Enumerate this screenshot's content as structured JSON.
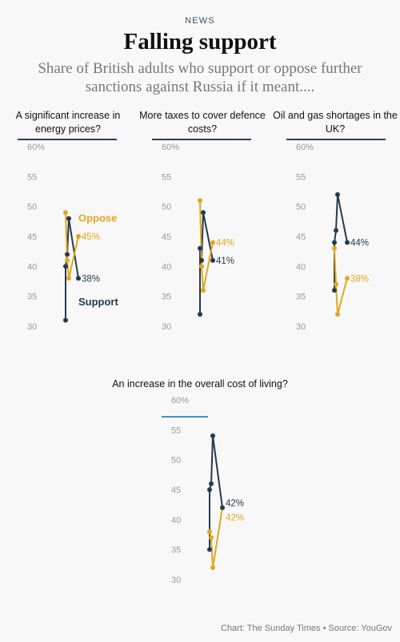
{
  "header": {
    "kicker": "NEWS",
    "title": "Falling support",
    "subtitle": "Share of British adults who support or oppose further sanctions against Russia if it meant...."
  },
  "footer": {
    "credit": "Chart: The Sunday Times • Source: YouGov"
  },
  "colors": {
    "support": "#263a4e",
    "oppose": "#e0a820",
    "tick": "#999999",
    "rule": "#2b4057"
  },
  "chart_data": [
    {
      "type": "line",
      "title": "A significant increase in energy prices?",
      "ylim": [
        30,
        60
      ],
      "yticks": [
        "60%",
        "55",
        "50",
        "45",
        "40",
        "35",
        "30"
      ],
      "series": [
        {
          "name": "Support",
          "values": [
            31,
            40,
            42,
            48,
            38
          ],
          "end_label": "38%"
        },
        {
          "name": "Oppose",
          "values": [
            49,
            41,
            38,
            45
          ],
          "end_label": "45%"
        }
      ]
    },
    {
      "type": "line",
      "title": "More taxes to cover defence costs?",
      "ylim": [
        30,
        60
      ],
      "yticks": [
        "60%",
        "55",
        "50",
        "45",
        "40",
        "35",
        "30"
      ],
      "series": [
        {
          "name": "",
          "values": [
            32,
            43,
            41,
            49,
            41
          ],
          "end_label": "41%"
        },
        {
          "name": "",
          "values": [
            51,
            40,
            36,
            44
          ],
          "end_label": "44%"
        }
      ]
    },
    {
      "type": "line",
      "title": "Oil and gas shortages in the UK?",
      "ylim": [
        30,
        60
      ],
      "yticks": [
        "60%",
        "55",
        "50",
        "45",
        "40",
        "35",
        "30"
      ],
      "series": [
        {
          "name": "",
          "values": [
            36,
            44,
            46,
            52,
            44
          ],
          "end_label": "44%"
        },
        {
          "name": "",
          "values": [
            43,
            37,
            32,
            38
          ],
          "end_label": "38%"
        }
      ]
    },
    {
      "type": "line",
      "title": "An increase in the overall cost of living?",
      "ylim": [
        30,
        60
      ],
      "yticks": [
        "60%",
        "55",
        "50",
        "45",
        "40",
        "35",
        "30"
      ],
      "series": [
        {
          "name": "",
          "values": [
            35,
            45,
            46,
            54,
            42
          ],
          "end_label": "42%"
        },
        {
          "name": "",
          "values": [
            38,
            37,
            32,
            42
          ],
          "end_label": "42%"
        }
      ]
    }
  ]
}
